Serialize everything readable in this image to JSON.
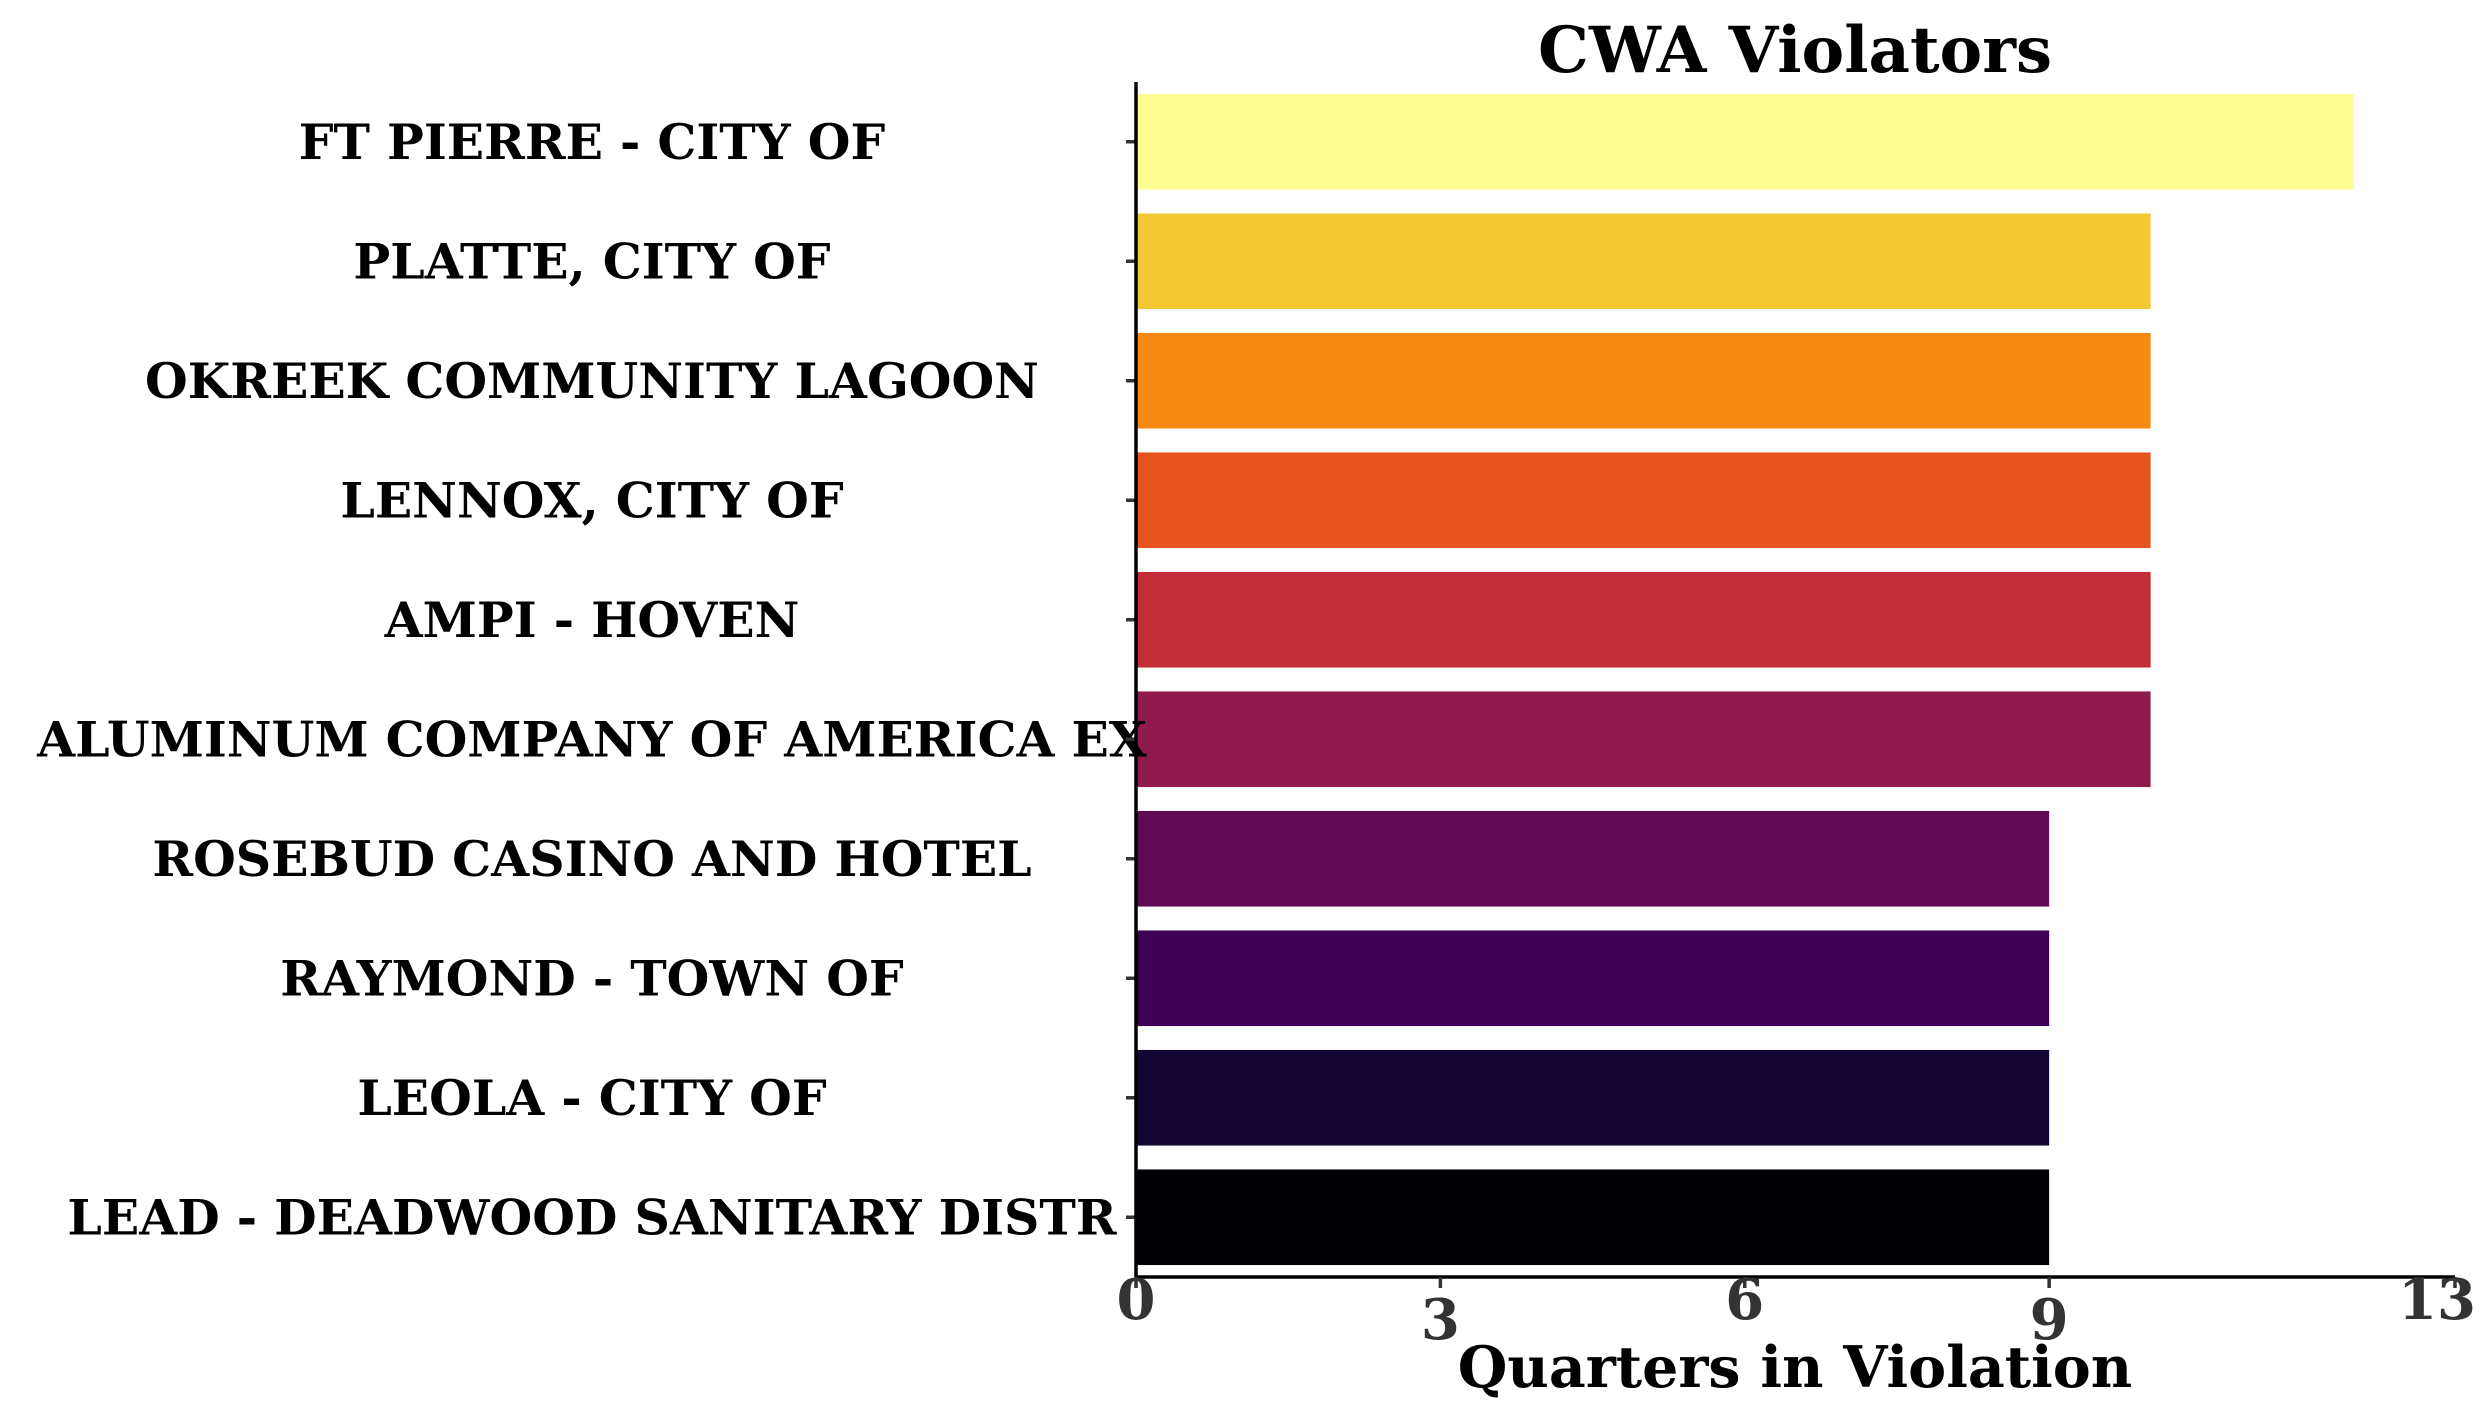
{
  "chart_data": {
    "type": "bar",
    "orientation": "horizontal",
    "title": "CWA Violators",
    "xlabel": "Quarters in Violation",
    "ylabel": "",
    "xlim": [
      0,
      13
    ],
    "xticks": [
      0,
      3,
      6,
      9,
      13
    ],
    "grid": false,
    "categories": [
      "FT PIERRE - CITY OF",
      "PLATTE, CITY OF",
      "OKREEK COMMUNITY LAGOON",
      "LENNOX, CITY OF",
      "AMPI - HOVEN",
      "ALUMINUM COMPANY OF AMERICA EX",
      "ROSEBUD CASINO AND HOTEL",
      "RAYMOND - TOWN OF",
      "LEOLA - CITY OF",
      "LEAD - DEADWOOD SANITARY DISTR"
    ],
    "values": [
      12,
      10,
      10,
      10,
      10,
      10,
      9,
      9,
      9,
      9
    ],
    "colors": [
      "#FCFD91",
      "#F4C834",
      "#F78A12",
      "#E5541F",
      "#C12E37",
      "#911A4C",
      "#620B55",
      "#3C0152",
      "#140633",
      "#000004"
    ]
  }
}
